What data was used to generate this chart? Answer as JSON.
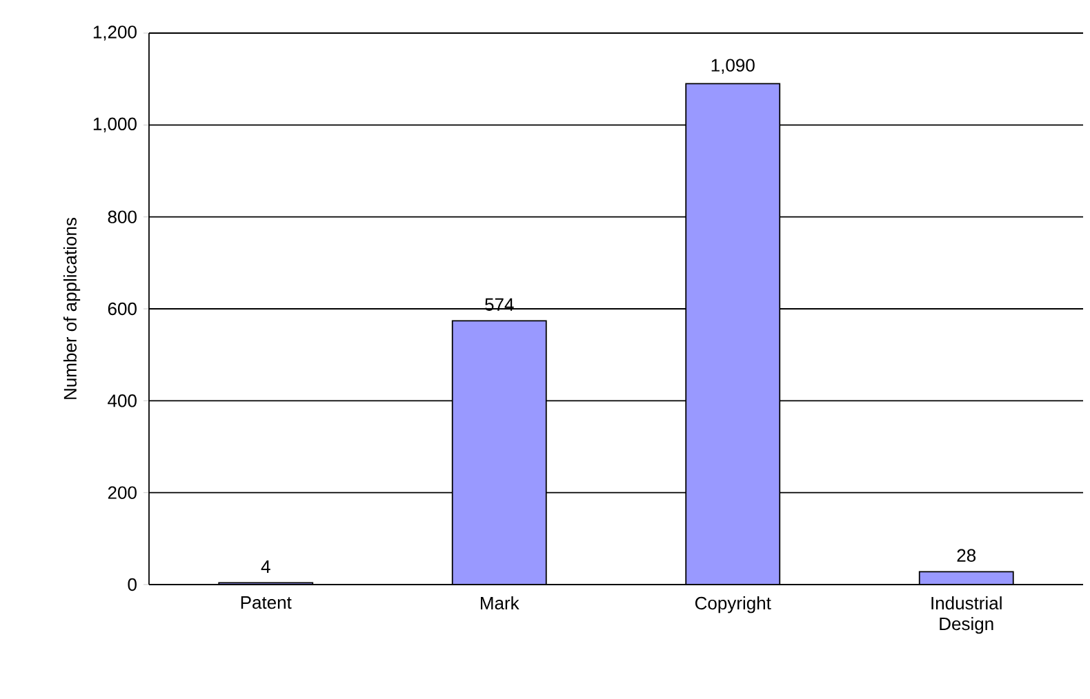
{
  "chart_data": {
    "type": "bar",
    "ylabel": "Number of applications",
    "categories": [
      "Patent",
      "Mark",
      "Copyright",
      "Industrial Design"
    ],
    "values": [
      4,
      574,
      1090,
      28
    ],
    "value_labels": [
      "4",
      "574",
      "1,090",
      "28"
    ],
    "color": "#9999ff",
    "ylim": [
      0,
      1200
    ],
    "yticks": [
      0,
      200,
      400,
      600,
      800,
      {
        "value": 1000,
        "label": "1,000"
      },
      {
        "value": 1200,
        "label": "1,200"
      }
    ],
    "grid": "y"
  }
}
